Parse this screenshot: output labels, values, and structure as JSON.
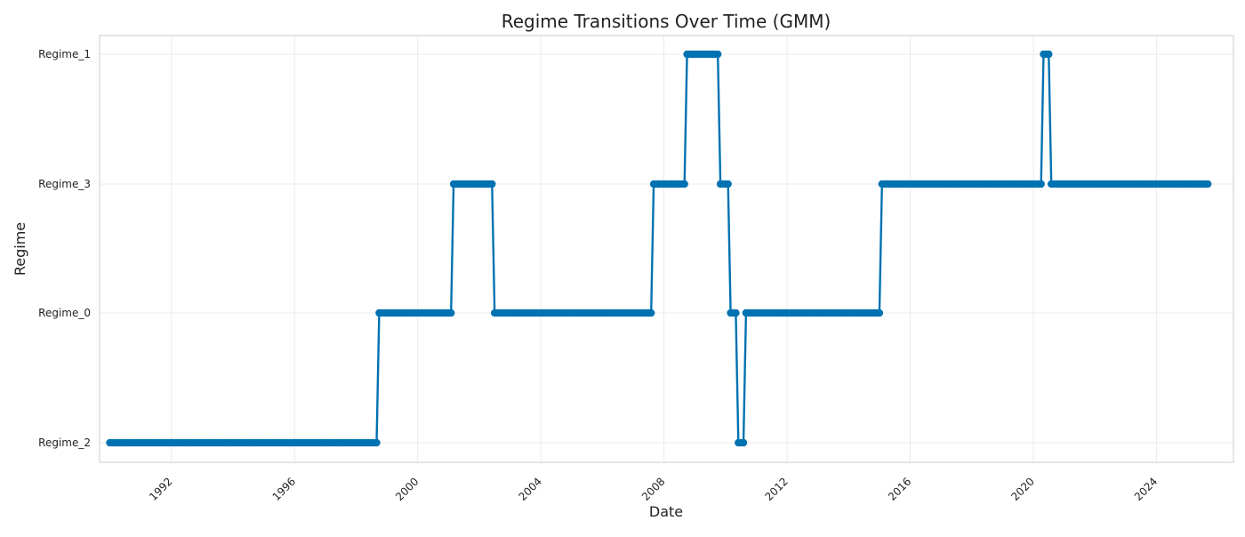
{
  "chart_data": {
    "type": "line",
    "title": "Regime Transitions Over Time (GMM)",
    "xlabel": "Date",
    "ylabel": "Regime",
    "y_categories": [
      "Regime_2",
      "Regime_0",
      "Regime_3",
      "Regime_1"
    ],
    "x_ticks": [
      "1992",
      "1996",
      "2000",
      "2004",
      "2008",
      "2012",
      "2016",
      "2020",
      "2024"
    ],
    "xlim": [
      "1989-09-01",
      "2026-07-01"
    ],
    "grid": true,
    "marker": "circle",
    "series_color": "#0072b2",
    "frequency": "monthly",
    "segments": [
      {
        "start": "1990-01",
        "end": "1998-09",
        "regime": "Regime_2"
      },
      {
        "start": "1998-10",
        "end": "2001-02",
        "regime": "Regime_0"
      },
      {
        "start": "2001-03",
        "end": "2002-06",
        "regime": "Regime_3"
      },
      {
        "start": "2002-07",
        "end": "2007-08",
        "regime": "Regime_0"
      },
      {
        "start": "2007-09",
        "end": "2008-09",
        "regime": "Regime_3"
      },
      {
        "start": "2008-10",
        "end": "2009-10",
        "regime": "Regime_1"
      },
      {
        "start": "2009-11",
        "end": "2010-02",
        "regime": "Regime_3"
      },
      {
        "start": "2010-03",
        "end": "2010-05",
        "regime": "Regime_0"
      },
      {
        "start": "2010-06",
        "end": "2010-08",
        "regime": "Regime_2"
      },
      {
        "start": "2010-09",
        "end": "2015-01",
        "regime": "Regime_0"
      },
      {
        "start": "2015-02",
        "end": "2020-04",
        "regime": "Regime_3"
      },
      {
        "start": "2020-05",
        "end": "2020-07",
        "regime": "Regime_1"
      },
      {
        "start": "2020-08",
        "end": "2025-09",
        "regime": "Regime_3"
      }
    ]
  }
}
